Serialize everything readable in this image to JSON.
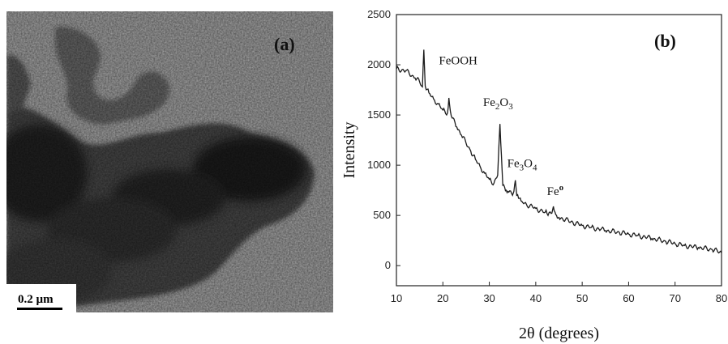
{
  "panel_a": {
    "label": "(a)",
    "scale_bar": "0.2 µm"
  },
  "chart_data": {
    "type": "line",
    "panel_label": "(b)",
    "xlabel": "2θ (degrees)",
    "ylabel": "Intensity",
    "xlim": [
      10,
      80
    ],
    "ylim": [
      -200,
      2500
    ],
    "x_ticks": [
      10,
      20,
      30,
      40,
      50,
      60,
      70,
      80
    ],
    "y_ticks": [
      0,
      500,
      1000,
      1500,
      2000,
      2500
    ],
    "series": [
      {
        "x": [
          10,
          12,
          14,
          15,
          15.6,
          15.9,
          16.2,
          17,
          18,
          19,
          20,
          21,
          21.3,
          21.6,
          22,
          23,
          24,
          25,
          26,
          27,
          28,
          29,
          30,
          31,
          31.8,
          32.3,
          32.6,
          32.9,
          33.3,
          34,
          35,
          35.3,
          35.6,
          35.9,
          36.3,
          37,
          38,
          40,
          42,
          43.3,
          43.8,
          44.3,
          45,
          48,
          50,
          52,
          54,
          55,
          58,
          60,
          62,
          65,
          68,
          70,
          72,
          75,
          78,
          80
        ],
        "y": [
          1960,
          1940,
          1870,
          1830,
          1780,
          2150,
          1790,
          1720,
          1660,
          1610,
          1550,
          1520,
          1670,
          1540,
          1470,
          1380,
          1300,
          1220,
          1140,
          1060,
          990,
          920,
          860,
          820,
          900,
          1410,
          1100,
          800,
          780,
          740,
          700,
          740,
          850,
          700,
          670,
          640,
          610,
          570,
          530,
          520,
          590,
          510,
          480,
          430,
          400,
          380,
          360,
          350,
          330,
          315,
          300,
          270,
          240,
          220,
          200,
          180,
          160,
          130
        ]
      }
    ],
    "annotations": [
      {
        "text": "FeOOH",
        "x": 16,
        "y": 2150
      },
      {
        "text": "Fe2O3",
        "x": 32.5,
        "y": 1410
      },
      {
        "text": "Fe3O4",
        "x": 35.6,
        "y": 850
      },
      {
        "text": "Feo",
        "x": 43.8,
        "y": 590
      }
    ],
    "grid": false,
    "line_color": "#1a1a1a"
  }
}
